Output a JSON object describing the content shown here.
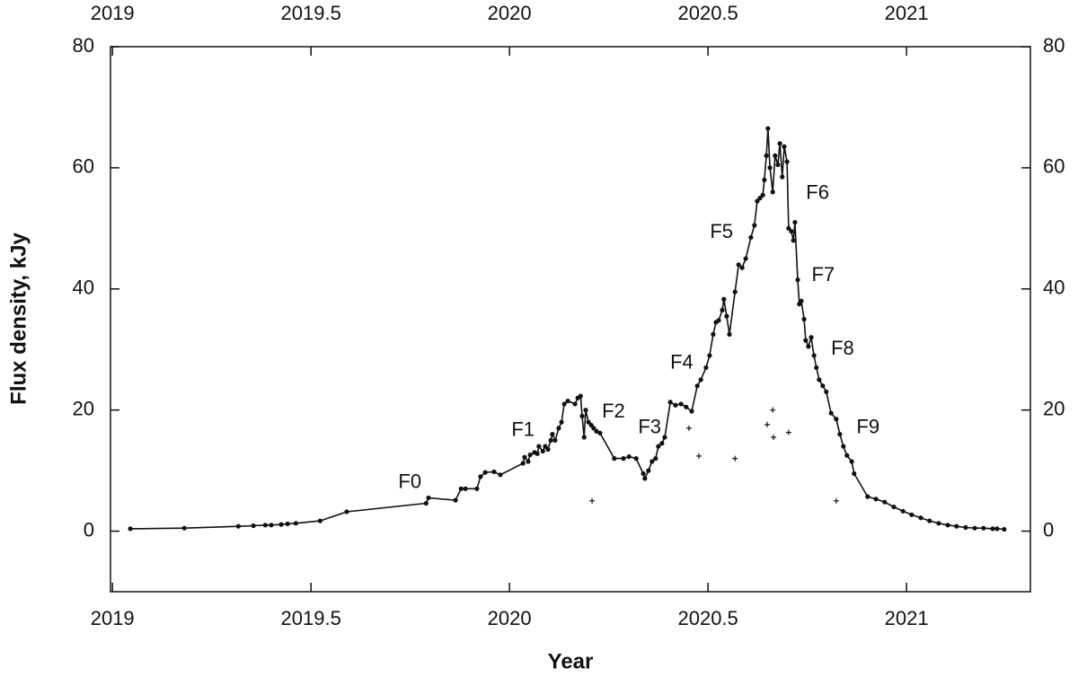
{
  "chart_data": {
    "type": "line",
    "xlabel": "Year",
    "ylabel": "Flux density, kJy",
    "xlim": [
      2018.995,
      2021.312
    ],
    "ylim": [
      -10,
      80
    ],
    "xticks": [
      2019,
      2019.5,
      2020,
      2020.5,
      2021
    ],
    "yticks": [
      0,
      20,
      40,
      60,
      80
    ],
    "color": "#111111",
    "x": [
      2019.045,
      2019.181,
      2019.317,
      2019.355,
      2019.385,
      2019.4,
      2019.425,
      2019.441,
      2019.462,
      2019.523,
      2019.59,
      2019.79,
      2019.796,
      2019.864,
      2019.878,
      2019.889,
      2019.918,
      2019.927,
      2019.939,
      2019.961,
      2019.977,
      2020.034,
      2020.038,
      2020.047,
      2020.052,
      2020.063,
      2020.07,
      2020.074,
      2020.084,
      2020.09,
      2020.097,
      2020.104,
      2020.108,
      2020.115,
      2020.124,
      2020.131,
      2020.138,
      2020.147,
      2020.165,
      2020.172,
      2020.179,
      2020.183,
      2020.188,
      2020.192,
      2020.199,
      2020.206,
      2020.212,
      2020.219,
      2020.228,
      2020.264,
      2020.287,
      2020.301,
      2020.319,
      2020.337,
      2020.341,
      2020.35,
      2020.359,
      2020.368,
      2020.375,
      2020.384,
      2020.391,
      2020.405,
      2020.418,
      2020.432,
      2020.445,
      2020.459,
      2020.473,
      2020.482,
      2020.495,
      2020.504,
      2020.513,
      2020.52,
      2020.527,
      2020.536,
      2020.54,
      2020.547,
      2020.554,
      2020.568,
      2020.577,
      2020.586,
      2020.595,
      2020.608,
      2020.617,
      2020.624,
      2020.631,
      2020.638,
      2020.642,
      2020.647,
      2020.651,
      2020.656,
      2020.663,
      2020.669,
      2020.676,
      2020.681,
      2020.687,
      2020.692,
      2020.699,
      2020.703,
      2020.71,
      2020.715,
      2020.719,
      2020.726,
      2020.73,
      2020.735,
      2020.742,
      2020.746,
      2020.753,
      2020.76,
      2020.767,
      2020.773,
      2020.78,
      2020.789,
      2020.798,
      2020.81,
      2020.823,
      2020.832,
      2020.841,
      2020.85,
      2020.862,
      2020.868,
      2020.902,
      2020.923,
      2020.945,
      2020.968,
      2020.991,
      2021.013,
      2021.036,
      2021.058,
      2021.081,
      2021.104,
      2021.126,
      2021.149,
      2021.172,
      2021.194,
      2021.217,
      2021.228,
      2021.246
    ],
    "values": [
      0.4,
      0.5,
      0.8,
      0.9,
      1.0,
      1.0,
      1.1,
      1.2,
      1.3,
      1.7,
      3.2,
      4.6,
      5.5,
      5.1,
      7.0,
      7.0,
      7.0,
      9.0,
      9.7,
      9.8,
      9.3,
      11.2,
      12.2,
      11.5,
      12.6,
      13.0,
      12.8,
      14.0,
      13.2,
      14.0,
      13.5,
      15.0,
      16.0,
      15.0,
      17.0,
      18.0,
      21.0,
      21.5,
      21.0,
      22.0,
      22.3,
      19.0,
      15.5,
      20.0,
      18.0,
      17.5,
      17.0,
      16.5,
      16.2,
      12.0,
      12.0,
      12.3,
      12.0,
      9.5,
      8.7,
      10.0,
      11.5,
      12.0,
      14.0,
      14.5,
      15.5,
      21.3,
      20.8,
      21.0,
      20.5,
      19.8,
      24.0,
      25.0,
      27.0,
      29.0,
      32.5,
      34.5,
      34.8,
      36.5,
      38.3,
      35.5,
      32.5,
      39.5,
      44.0,
      43.5,
      45.0,
      48.5,
      50.5,
      54.5,
      55.0,
      55.5,
      58.0,
      62.0,
      66.5,
      60.0,
      56.0,
      62.0,
      60.5,
      64.0,
      58.5,
      63.5,
      61.0,
      50.0,
      49.5,
      48.0,
      51.0,
      41.5,
      37.5,
      38.0,
      35.0,
      31.5,
      30.5,
      32.0,
      29.0,
      27.0,
      25.0,
      24.0,
      23.0,
      19.5,
      18.5,
      16.0,
      14.0,
      12.5,
      11.5,
      9.5,
      5.7,
      5.3,
      4.8,
      4.0,
      3.3,
      2.7,
      2.2,
      1.7,
      1.3,
      1.0,
      0.8,
      0.6,
      0.5,
      0.5,
      0.4,
      0.4,
      0.3
    ],
    "extra_points": {
      "x": [
        2020.208,
        2020.452,
        2020.477,
        2020.568,
        2020.649,
        2020.663,
        2020.665,
        2020.703,
        2020.823
      ],
      "values": [
        5.0,
        17.0,
        12.4,
        12.0,
        17.6,
        20.0,
        15.5,
        16.3,
        5.0
      ]
    },
    "annotations": [
      {
        "text": "F0",
        "x": 2019.749,
        "y": 8.0
      },
      {
        "text": "F1",
        "x": 2020.034,
        "y": 16.6
      },
      {
        "text": "F2",
        "x": 2020.262,
        "y": 19.6
      },
      {
        "text": "F3",
        "x": 2020.353,
        "y": 17.0
      },
      {
        "text": "F4",
        "x": 2020.434,
        "y": 27.7
      },
      {
        "text": "F5",
        "x": 2020.534,
        "y": 49.3
      },
      {
        "text": "F6",
        "x": 2020.776,
        "y": 55.7
      },
      {
        "text": "F7",
        "x": 2020.79,
        "y": 42.2
      },
      {
        "text": "F8",
        "x": 2020.839,
        "y": 30.0
      },
      {
        "text": "F9",
        "x": 2020.903,
        "y": 17.0
      }
    ]
  }
}
